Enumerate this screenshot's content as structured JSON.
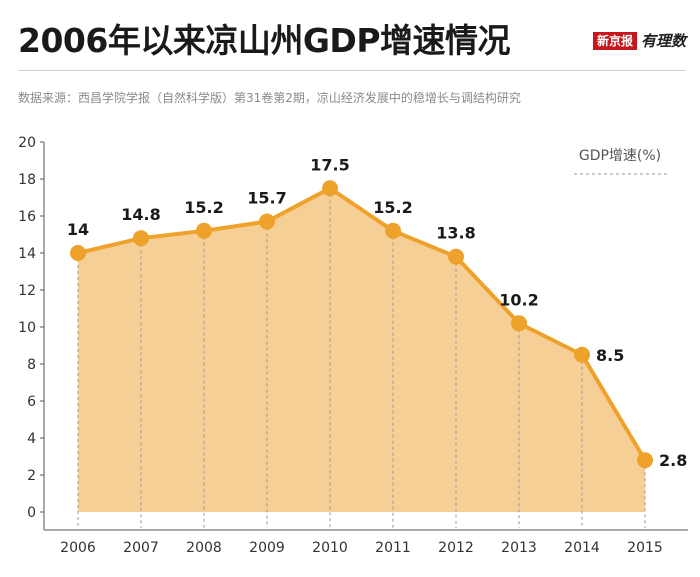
{
  "header": {
    "title": "2006年以来凉山州GDP增速情况",
    "brand_box": "新京报",
    "brand_script": "有理数"
  },
  "source": "数据来源：西昌学院学报（自然科学版）第31卷第2期，凉山经济发展中的稳增长与调结构研究",
  "colors": {
    "line": "#eea22b",
    "fill": "#f6cf97",
    "marker": "#eea22b",
    "axis": "#555555",
    "grid": "#9a9a9a"
  },
  "chart_data": {
    "type": "area",
    "title": "2006年以来凉山州GDP增速情况",
    "categories": [
      "2006",
      "2007",
      "2008",
      "2009",
      "2010",
      "2011",
      "2012",
      "2013",
      "2014",
      "2015"
    ],
    "series": [
      {
        "name": "GDP增速(%)",
        "values": [
          14,
          14.8,
          15.2,
          15.7,
          17.5,
          15.2,
          13.8,
          10.2,
          8.5,
          2.8
        ]
      }
    ],
    "data_labels": [
      "14",
      "14.8",
      "15.2",
      "15.7",
      "17.5",
      "15.2",
      "13.8",
      "10.2",
      "8.5",
      "2.8"
    ],
    "ylim": [
      0,
      20
    ],
    "yticks": [
      0,
      2,
      4,
      6,
      8,
      10,
      12,
      14,
      16,
      18,
      20
    ],
    "xlabel": "",
    "ylabel": "",
    "legend": "top-right"
  }
}
